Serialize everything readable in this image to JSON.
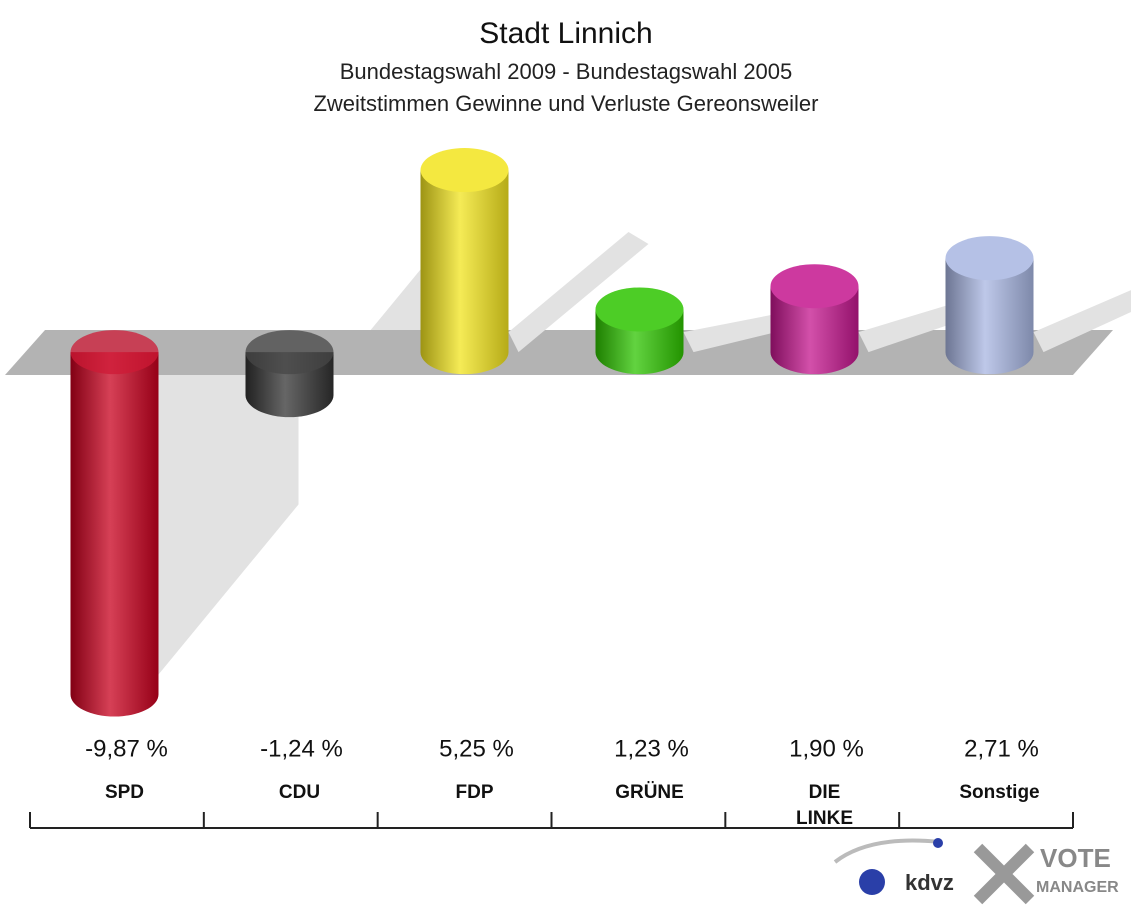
{
  "chart_data": {
    "type": "bar",
    "title": "Stadt Linnich",
    "subtitle": [
      "Bundestagswahl 2009 - Bundestagswahl 2005",
      "Zweitstimmen Gewinne und Verluste Gereonsweiler"
    ],
    "categories": [
      "SPD",
      "CDU",
      "FDP",
      "GRÜNE",
      "DIE LINKE",
      "Sonstige"
    ],
    "values": [
      -9.87,
      -1.24,
      5.25,
      1.23,
      1.9,
      2.71
    ],
    "value_labels": [
      "-9,87 %",
      "-1,24 %",
      "5,25 %",
      "1,23 %",
      "1,90 %",
      "2,71 %"
    ],
    "colors": [
      "#c8001e",
      "#333333",
      "#f2e41e",
      "#2ec400",
      "#c4168e",
      "#a8b6e2"
    ],
    "ylim": [
      -10,
      6
    ],
    "logo_text": [
      "kdvz",
      "VOTE",
      "MANAGER"
    ]
  }
}
